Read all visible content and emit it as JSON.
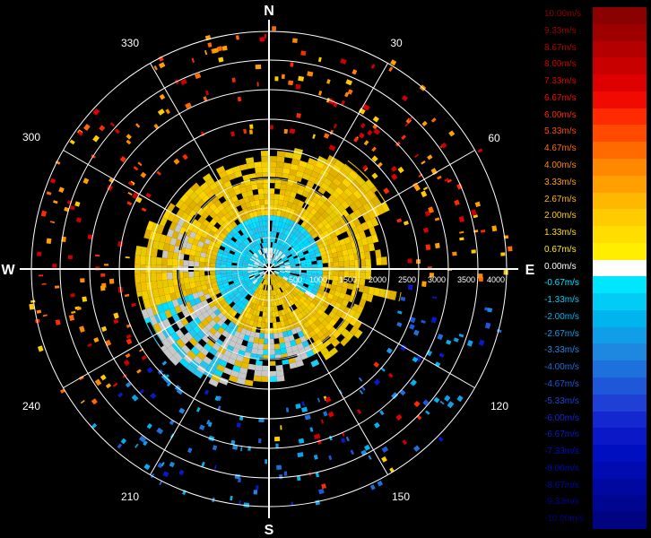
{
  "cardinals": {
    "n": "N",
    "e": "E",
    "s": "S",
    "w": "W"
  },
  "azimuth_labels": [
    "30",
    "60",
    "120",
    "150",
    "210",
    "240",
    "300",
    "330"
  ],
  "range_labels": [
    "500",
    "1000",
    "1500",
    "2000",
    "2500",
    "3000",
    "3500",
    "4000"
  ],
  "colorbar": [
    {
      "label": "10.00m/s",
      "color": "#8b0000"
    },
    {
      "label": "9.33m/s",
      "color": "#9e0000"
    },
    {
      "label": "8.67m/s",
      "color": "#b40000"
    },
    {
      "label": "8.00m/s",
      "color": "#c80000"
    },
    {
      "label": "7.33m/s",
      "color": "#dc0000"
    },
    {
      "label": "6.67m/s",
      "color": "#f00a00"
    },
    {
      "label": "6.00m/s",
      "color": "#ff2a00"
    },
    {
      "label": "5.33m/s",
      "color": "#ff4a00"
    },
    {
      "label": "4.67m/s",
      "color": "#ff6a00"
    },
    {
      "label": "4.00m/s",
      "color": "#ff8800"
    },
    {
      "label": "3.33m/s",
      "color": "#ffa000"
    },
    {
      "label": "2.67m/s",
      "color": "#ffb800"
    },
    {
      "label": "2.00m/s",
      "color": "#ffcc00"
    },
    {
      "label": "1.33m/s",
      "color": "#ffdd00"
    },
    {
      "label": "0.67m/s",
      "color": "#ffee00"
    },
    {
      "label": "0.00m/s",
      "color": "#ffffff"
    },
    {
      "label": "-0.67m/s",
      "color": "#00e6ff"
    },
    {
      "label": "-1.33m/s",
      "color": "#00ccf5"
    },
    {
      "label": "-2.00m/s",
      "color": "#00b4ee"
    },
    {
      "label": "-2.67m/s",
      "color": "#109ee8"
    },
    {
      "label": "-3.33m/s",
      "color": "#1e88e0"
    },
    {
      "label": "-4.00m/s",
      "color": "#1e70dc"
    },
    {
      "label": "-4.67m/s",
      "color": "#1e58d8"
    },
    {
      "label": "-5.33m/s",
      "color": "#1e40d4"
    },
    {
      "label": "-6.00m/s",
      "color": "#1428d0"
    },
    {
      "label": "-6.67m/s",
      "color": "#0a18c8"
    },
    {
      "label": "-7.33m/s",
      "color": "#0010c0"
    },
    {
      "label": "-8.00m/s",
      "color": "#000cb0"
    },
    {
      "label": "-8.67m/s",
      "color": "#0008a0"
    },
    {
      "label": "-9.33m/s",
      "color": "#000690"
    },
    {
      "label": "-10.00m/s",
      "color": "#000480"
    }
  ]
}
